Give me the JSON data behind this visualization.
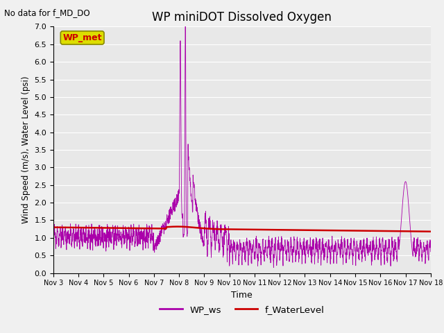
{
  "title": "WP miniDOT Dissolved Oxygen",
  "top_left_text": "No data for f_MD_DO",
  "ylabel": "Wind Speed (m/s), Water Level (psi)",
  "xlabel": "Time",
  "ylim": [
    0.0,
    7.0
  ],
  "yticks": [
    0.0,
    0.5,
    1.0,
    1.5,
    2.0,
    2.5,
    3.0,
    3.5,
    4.0,
    4.5,
    5.0,
    5.5,
    6.0,
    6.5,
    7.0
  ],
  "legend_entries": [
    "WP_ws",
    "f_WaterLevel"
  ],
  "wp_met_box_facecolor": "#DDDD00",
  "wp_met_text_color": "#CC0000",
  "wp_met_edge_color": "#888800",
  "background_color": "#E8E8E8",
  "grid_color": "#FFFFFF",
  "ws_color": "#AA00AA",
  "wl_color": "#CC0000",
  "fig_facecolor": "#F0F0F0",
  "num_ws_points": 2000,
  "num_wl_points": 500
}
